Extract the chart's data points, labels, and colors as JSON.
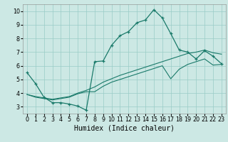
{
  "bg_color": "#cce8e4",
  "grid_color": "#99ccc6",
  "line_color": "#1a7a6a",
  "xlim": [
    -0.5,
    23.5
  ],
  "ylim": [
    2.5,
    10.5
  ],
  "xticks": [
    0,
    1,
    2,
    3,
    4,
    5,
    6,
    7,
    8,
    9,
    10,
    11,
    12,
    13,
    14,
    15,
    16,
    17,
    18,
    19,
    20,
    21,
    22,
    23
  ],
  "yticks": [
    3,
    4,
    5,
    6,
    7,
    8,
    9,
    10
  ],
  "xlabel": "Humidex (Indice chaleur)",
  "line1_x": [
    0,
    1,
    2,
    3,
    4,
    5,
    6,
    7,
    8,
    9,
    10,
    11,
    12,
    13,
    14,
    15,
    16,
    17,
    18,
    19,
    20,
    21,
    22,
    23
  ],
  "line1_y": [
    5.5,
    4.7,
    3.7,
    3.3,
    3.3,
    3.2,
    3.05,
    2.75,
    6.3,
    6.35,
    7.5,
    8.2,
    8.5,
    9.15,
    9.35,
    10.1,
    9.5,
    8.35,
    7.15,
    7.0,
    6.5,
    7.1,
    6.7,
    6.15
  ],
  "line2_x": [
    0,
    1,
    2,
    3,
    4,
    5,
    6,
    7,
    8,
    9,
    10,
    11,
    12,
    13,
    14,
    15,
    16,
    17,
    18,
    19,
    20,
    21,
    22,
    23
  ],
  "line2_y": [
    3.9,
    3.75,
    3.65,
    3.55,
    3.65,
    3.75,
    4.0,
    4.2,
    4.45,
    4.8,
    5.05,
    5.3,
    5.5,
    5.7,
    5.9,
    6.1,
    6.3,
    6.5,
    6.7,
    6.9,
    7.0,
    7.15,
    6.95,
    6.85
  ],
  "line3_x": [
    0,
    1,
    2,
    3,
    4,
    5,
    6,
    7,
    8,
    9,
    10,
    11,
    12,
    13,
    14,
    15,
    16,
    17,
    18,
    19,
    20,
    21,
    22,
    23
  ],
  "line3_y": [
    3.9,
    3.7,
    3.6,
    3.5,
    3.6,
    3.7,
    3.95,
    4.1,
    4.1,
    4.5,
    4.8,
    5.0,
    5.2,
    5.4,
    5.6,
    5.8,
    6.0,
    5.05,
    5.75,
    6.1,
    6.3,
    6.5,
    6.05,
    6.1
  ],
  "lw_main": 0.9,
  "lw_trend": 0.8,
  "marker_size": 3.0,
  "tick_fontsize": 5.8,
  "xlabel_fontsize": 7.0
}
